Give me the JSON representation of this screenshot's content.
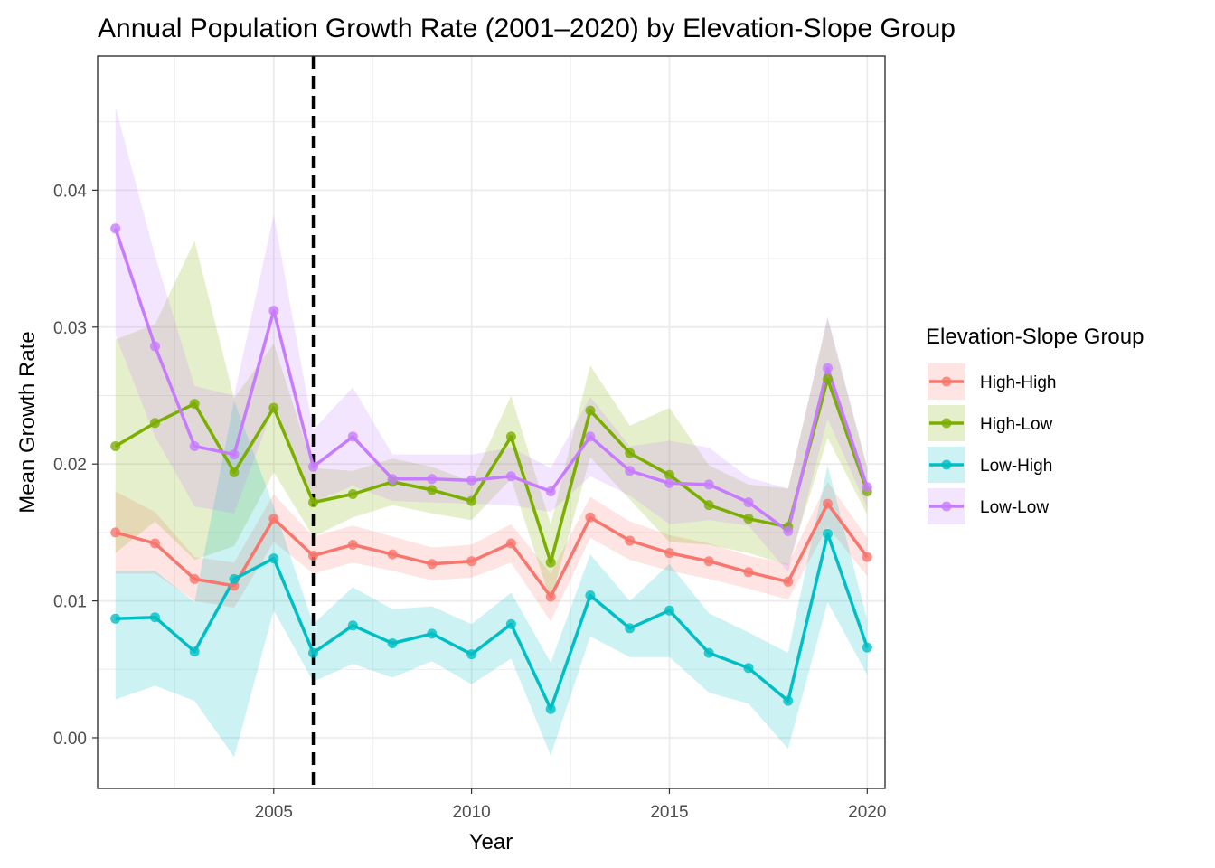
{
  "chart_data": {
    "type": "line",
    "title": "Annual Population Growth Rate (2001–2020) by Elevation-Slope Group",
    "xlabel": "Year",
    "ylabel": "Mean Growth Rate",
    "xlim": [
      2000.55,
      2020.45
    ],
    "ylim": [
      -0.0037,
      0.0498
    ],
    "x_ticks": [
      2005,
      2010,
      2015,
      2020
    ],
    "x_tick_labels": [
      "2005",
      "2010",
      "2015",
      "2020"
    ],
    "y_ticks": [
      0.0,
      0.01,
      0.02,
      0.03,
      0.04
    ],
    "y_tick_labels": [
      "0.00",
      "0.01",
      "0.02",
      "0.03",
      "0.04"
    ],
    "vline": {
      "x": 2006,
      "style": "dashed",
      "color": "#000000"
    },
    "grid": true,
    "legend": {
      "title": "Elevation-Slope Group",
      "position": "right"
    },
    "x": [
      2001,
      2002,
      2003,
      2004,
      2005,
      2006,
      2007,
      2008,
      2009,
      2010,
      2011,
      2012,
      2013,
      2014,
      2015,
      2016,
      2017,
      2018,
      2019,
      2020
    ],
    "series": [
      {
        "name": "High-High",
        "color": "#F8766D",
        "values": [
          0.015,
          0.0142,
          0.0116,
          0.0111,
          0.016,
          0.0133,
          0.0141,
          0.0134,
          0.0127,
          0.0129,
          0.0142,
          0.0103,
          0.0161,
          0.0144,
          0.0135,
          0.0129,
          0.0121,
          0.0114,
          0.0171,
          0.0132
        ],
        "lower": [
          0.012,
          0.012,
          0.01,
          0.0095,
          0.0143,
          0.012,
          0.0128,
          0.0122,
          0.0115,
          0.0117,
          0.0128,
          0.0085,
          0.0146,
          0.013,
          0.0122,
          0.0116,
          0.0109,
          0.0101,
          0.0154,
          0.0118
        ],
        "upper": [
          0.018,
          0.0165,
          0.0132,
          0.0128,
          0.0178,
          0.0147,
          0.0155,
          0.0147,
          0.0139,
          0.0141,
          0.0156,
          0.012,
          0.0176,
          0.0158,
          0.0148,
          0.0142,
          0.0133,
          0.0127,
          0.0187,
          0.0146
        ]
      },
      {
        "name": "High-Low",
        "color": "#7CAE00",
        "values": [
          0.0213,
          0.023,
          0.0244,
          0.0194,
          0.0241,
          0.0172,
          0.0178,
          0.0187,
          0.0181,
          0.0173,
          0.022,
          0.0128,
          0.0239,
          0.0208,
          0.0192,
          0.017,
          0.016,
          0.0154,
          0.0262,
          0.018
        ],
        "lower": [
          0.0135,
          0.0158,
          0.013,
          0.014,
          0.0194,
          0.0147,
          0.0161,
          0.017,
          0.0164,
          0.0159,
          0.0189,
          0.01,
          0.0205,
          0.0174,
          0.0143,
          0.0141,
          0.0135,
          0.0126,
          0.0219,
          0.0163
        ],
        "upper": [
          0.0291,
          0.0302,
          0.0363,
          0.0248,
          0.0288,
          0.0197,
          0.0195,
          0.0204,
          0.0198,
          0.0187,
          0.025,
          0.0156,
          0.0272,
          0.0228,
          0.0241,
          0.0199,
          0.0185,
          0.0182,
          0.0306,
          0.0197
        ]
      },
      {
        "name": "Low-High",
        "color": "#00BFC4",
        "values": [
          0.0087,
          0.0088,
          0.0063,
          0.0116,
          0.0131,
          0.0062,
          0.0082,
          0.0069,
          0.0076,
          0.0061,
          0.0083,
          0.0021,
          0.0104,
          0.008,
          0.0093,
          0.0062,
          0.0051,
          0.0027,
          0.0149,
          0.0066
        ],
        "lower": [
          0.0028,
          0.0038,
          0.0027,
          -0.0014,
          0.0093,
          0.0041,
          0.0054,
          0.0044,
          0.0056,
          0.0039,
          0.0058,
          -0.0013,
          0.0074,
          0.0059,
          0.0059,
          0.0033,
          0.0025,
          -0.0008,
          0.0099,
          0.0046
        ],
        "upper": [
          0.0122,
          0.0122,
          0.0099,
          0.0246,
          0.0169,
          0.0083,
          0.011,
          0.0094,
          0.0096,
          0.0083,
          0.0106,
          0.0055,
          0.0134,
          0.01,
          0.0127,
          0.0091,
          0.0077,
          0.0062,
          0.0199,
          0.0086
        ]
      },
      {
        "name": "Low-Low",
        "color": "#C77CFF",
        "values": [
          0.0372,
          0.0286,
          0.0213,
          0.0207,
          0.0312,
          0.0198,
          0.022,
          0.0189,
          0.0189,
          0.0188,
          0.0191,
          0.018,
          0.022,
          0.0195,
          0.0186,
          0.0185,
          0.0172,
          0.0151,
          0.027,
          0.0183
        ],
        "lower": [
          0.0294,
          0.022,
          0.0169,
          0.0164,
          0.0242,
          0.0172,
          0.0184,
          0.0173,
          0.0172,
          0.0171,
          0.017,
          0.0165,
          0.0191,
          0.0177,
          0.0156,
          0.0159,
          0.0155,
          0.0121,
          0.0233,
          0.0168
        ],
        "upper": [
          0.0461,
          0.0352,
          0.0257,
          0.025,
          0.0382,
          0.0225,
          0.0256,
          0.0207,
          0.0207,
          0.0207,
          0.0212,
          0.0197,
          0.0249,
          0.0213,
          0.0217,
          0.0212,
          0.019,
          0.0182,
          0.0308,
          0.0198
        ]
      }
    ]
  }
}
